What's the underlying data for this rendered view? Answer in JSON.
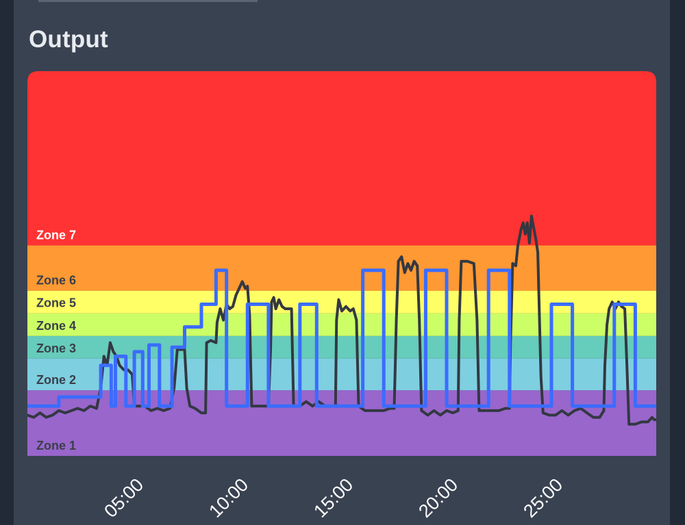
{
  "header": {
    "title": "Output"
  },
  "chart_data": {
    "type": "line",
    "title": "Output",
    "xlabel": "",
    "ylabel": "",
    "x_unit": "minutes",
    "xlim": [
      0,
      30
    ],
    "ylim": [
      0,
      170
    ],
    "x_ticks": [
      {
        "value": 5,
        "label": "05:00"
      },
      {
        "value": 10,
        "label": "10:00"
      },
      {
        "value": 15,
        "label": "15:00"
      },
      {
        "value": 20,
        "label": "20:00"
      },
      {
        "value": 25,
        "label": "25:00"
      }
    ],
    "zones": [
      {
        "name": "Zone 1",
        "from": 0,
        "to": 29,
        "color": "#9966cc",
        "text_color": "#3a3f4a"
      },
      {
        "name": "Zone 2",
        "from": 29,
        "to": 43,
        "color": "#7ecfe0",
        "text_color": "#3a3f4a"
      },
      {
        "name": "Zone 3",
        "from": 43,
        "to": 53,
        "color": "#66ccbb",
        "text_color": "#3a3f4a"
      },
      {
        "name": "Zone 4",
        "from": 53,
        "to": 63,
        "color": "#ccff66",
        "text_color": "#3a3f4a"
      },
      {
        "name": "Zone 5",
        "from": 63,
        "to": 73,
        "color": "#ffff66",
        "text_color": "#3a3f4a"
      },
      {
        "name": "Zone 6",
        "from": 73,
        "to": 93,
        "color": "#ff9933",
        "text_color": "#3a3f4a"
      },
      {
        "name": "Zone 7",
        "from": 93,
        "to": 170,
        "color": "#ff3333",
        "text_color": "#ffffff"
      }
    ],
    "series": [
      {
        "color": "#333842",
        "points": [
          [
            0,
            18
          ],
          [
            0.3,
            17
          ],
          [
            0.6,
            19
          ],
          [
            0.9,
            17
          ],
          [
            1.2,
            18
          ],
          [
            1.5,
            20
          ],
          [
            1.8,
            19
          ],
          [
            2.1,
            20
          ],
          [
            2.4,
            21
          ],
          [
            2.7,
            20
          ],
          [
            3.0,
            22
          ],
          [
            3.3,
            21
          ],
          [
            3.5,
            30
          ],
          [
            3.65,
            44
          ],
          [
            3.8,
            40
          ],
          [
            3.95,
            50
          ],
          [
            4.1,
            46
          ],
          [
            4.25,
            44
          ],
          [
            4.4,
            40
          ],
          [
            4.6,
            38
          ],
          [
            4.8,
            38
          ],
          [
            5.0,
            36
          ],
          [
            5.1,
            22
          ],
          [
            5.3,
            22
          ],
          [
            5.6,
            22
          ],
          [
            5.9,
            20
          ],
          [
            6.2,
            21
          ],
          [
            6.5,
            20
          ],
          [
            6.8,
            21
          ],
          [
            7.0,
            30
          ],
          [
            7.15,
            47
          ],
          [
            7.3,
            47
          ],
          [
            7.5,
            47
          ],
          [
            7.6,
            30
          ],
          [
            7.75,
            22
          ],
          [
            8.0,
            21
          ],
          [
            8.3,
            19
          ],
          [
            8.5,
            19
          ],
          [
            8.55,
            50
          ],
          [
            8.75,
            51
          ],
          [
            9.0,
            50
          ],
          [
            9.05,
            59
          ],
          [
            9.2,
            65
          ],
          [
            9.35,
            60
          ],
          [
            9.5,
            67
          ],
          [
            9.65,
            65
          ],
          [
            9.8,
            66
          ],
          [
            9.95,
            71
          ],
          [
            10.1,
            74
          ],
          [
            10.25,
            77
          ],
          [
            10.4,
            74
          ],
          [
            10.5,
            75
          ],
          [
            10.6,
            62
          ],
          [
            10.7,
            22
          ],
          [
            10.9,
            22
          ],
          [
            11.2,
            22
          ],
          [
            11.5,
            22
          ],
          [
            11.6,
            47
          ],
          [
            11.65,
            68
          ],
          [
            11.75,
            70
          ],
          [
            11.85,
            65
          ],
          [
            12.0,
            69
          ],
          [
            12.15,
            66
          ],
          [
            12.3,
            65
          ],
          [
            12.5,
            65
          ],
          [
            12.6,
            65
          ],
          [
            12.7,
            22
          ],
          [
            13.0,
            22
          ],
          [
            13.3,
            24
          ],
          [
            13.6,
            22
          ],
          [
            13.9,
            24
          ],
          [
            14.2,
            22
          ],
          [
            14.5,
            22
          ],
          [
            14.7,
            22
          ],
          [
            14.75,
            60
          ],
          [
            14.85,
            69
          ],
          [
            15.0,
            64
          ],
          [
            15.2,
            66
          ],
          [
            15.4,
            64
          ],
          [
            15.55,
            65
          ],
          [
            15.7,
            60
          ],
          [
            15.8,
            22
          ],
          [
            16.1,
            20
          ],
          [
            16.4,
            20
          ],
          [
            16.7,
            20
          ],
          [
            17.0,
            20
          ],
          [
            17.3,
            21
          ],
          [
            17.5,
            21
          ],
          [
            17.6,
            60
          ],
          [
            17.7,
            86
          ],
          [
            17.85,
            88
          ],
          [
            18.0,
            81
          ],
          [
            18.15,
            85
          ],
          [
            18.3,
            82
          ],
          [
            18.45,
            86
          ],
          [
            18.6,
            84
          ],
          [
            18.7,
            60
          ],
          [
            18.8,
            20
          ],
          [
            19.1,
            18
          ],
          [
            19.4,
            20
          ],
          [
            19.7,
            18
          ],
          [
            20.0,
            20
          ],
          [
            20.3,
            19
          ],
          [
            20.55,
            20
          ],
          [
            20.6,
            60
          ],
          [
            20.7,
            86
          ],
          [
            21.0,
            86
          ],
          [
            21.3,
            85
          ],
          [
            21.45,
            60
          ],
          [
            21.55,
            20
          ],
          [
            21.9,
            20
          ],
          [
            22.2,
            20
          ],
          [
            22.5,
            20
          ],
          [
            22.8,
            21
          ],
          [
            23.0,
            21
          ],
          [
            23.05,
            50
          ],
          [
            23.15,
            85
          ],
          [
            23.3,
            84
          ],
          [
            23.4,
            93
          ],
          [
            23.55,
            100
          ],
          [
            23.65,
            103
          ],
          [
            23.75,
            98
          ],
          [
            23.85,
            103
          ],
          [
            23.95,
            94
          ],
          [
            24.05,
            106
          ],
          [
            24.15,
            101
          ],
          [
            24.25,
            96
          ],
          [
            24.35,
            90
          ],
          [
            24.5,
            35
          ],
          [
            24.6,
            19
          ],
          [
            24.9,
            18
          ],
          [
            25.2,
            18
          ],
          [
            25.5,
            20
          ],
          [
            25.8,
            18
          ],
          [
            26.1,
            20
          ],
          [
            26.4,
            21
          ],
          [
            26.7,
            19
          ],
          [
            27.0,
            17
          ],
          [
            27.3,
            17
          ],
          [
            27.5,
            20
          ],
          [
            27.55,
            40
          ],
          [
            27.65,
            58
          ],
          [
            27.75,
            65
          ],
          [
            27.9,
            68
          ],
          [
            28.05,
            65
          ],
          [
            28.2,
            68
          ],
          [
            28.35,
            66
          ],
          [
            28.5,
            65
          ],
          [
            28.6,
            40
          ],
          [
            28.7,
            14
          ],
          [
            29.0,
            14
          ],
          [
            29.3,
            15
          ],
          [
            29.6,
            15
          ],
          [
            29.8,
            17
          ],
          [
            29.9,
            16
          ],
          [
            30,
            16
          ]
        ]
      },
      {
        "color": "#3b6cff",
        "points": [
          [
            0,
            22
          ],
          [
            1.5,
            22
          ],
          [
            1.5,
            26
          ],
          [
            3.5,
            26
          ],
          [
            3.5,
            40
          ],
          [
            4.0,
            40
          ],
          [
            4.0,
            22
          ],
          [
            4.2,
            22
          ],
          [
            4.2,
            44
          ],
          [
            4.7,
            44
          ],
          [
            4.7,
            22
          ],
          [
            5.1,
            22
          ],
          [
            5.1,
            46
          ],
          [
            5.5,
            46
          ],
          [
            5.5,
            22
          ],
          [
            5.8,
            22
          ],
          [
            5.8,
            49
          ],
          [
            6.3,
            49
          ],
          [
            6.3,
            22
          ],
          [
            6.9,
            22
          ],
          [
            6.9,
            48
          ],
          [
            7.5,
            48
          ],
          [
            7.5,
            57
          ],
          [
            8.3,
            57
          ],
          [
            8.3,
            67
          ],
          [
            9.0,
            67
          ],
          [
            9.0,
            82
          ],
          [
            9.5,
            82
          ],
          [
            9.5,
            22
          ],
          [
            10.5,
            22
          ],
          [
            10.5,
            67
          ],
          [
            11.5,
            67
          ],
          [
            11.5,
            22
          ],
          [
            13.0,
            22
          ],
          [
            13.0,
            67
          ],
          [
            13.8,
            67
          ],
          [
            13.8,
            22
          ],
          [
            16.0,
            22
          ],
          [
            16.0,
            82
          ],
          [
            17.0,
            82
          ],
          [
            17.0,
            22
          ],
          [
            19.0,
            22
          ],
          [
            19.0,
            82
          ],
          [
            20.0,
            82
          ],
          [
            20.0,
            22
          ],
          [
            22.0,
            22
          ],
          [
            22.0,
            82
          ],
          [
            23.0,
            82
          ],
          [
            23.0,
            22
          ],
          [
            25.0,
            22
          ],
          [
            25.0,
            67
          ],
          [
            26.0,
            67
          ],
          [
            26.0,
            22
          ],
          [
            28.0,
            22
          ],
          [
            28.0,
            67
          ],
          [
            29.0,
            67
          ],
          [
            29.0,
            22
          ],
          [
            30,
            22
          ]
        ]
      }
    ]
  }
}
